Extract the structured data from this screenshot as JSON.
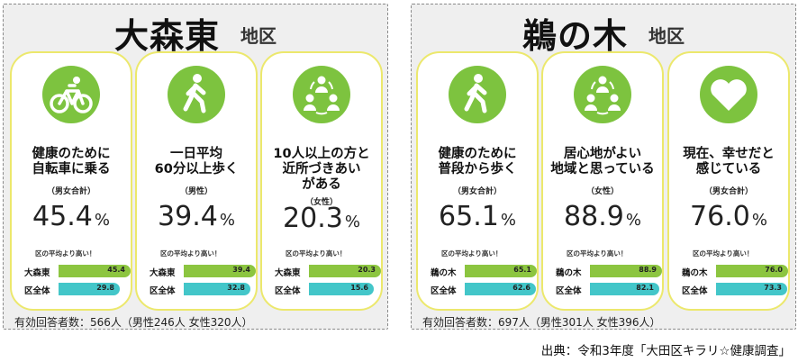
{
  "districts": [
    {
      "name": "大森東",
      "suffix": "地区",
      "footer": "有効回答者数：566人（男性246人 女性320人）",
      "cards": [
        {
          "icon": "bicycle-icon",
          "label": "健康のために\n自転車に乗る",
          "group": "（男女合計）",
          "value": "45.4",
          "unit": "%",
          "note": "区の平均より高い！",
          "rows": [
            {
              "label": "大森東",
              "value": 45.4,
              "text": "45.4"
            },
            {
              "label": "区全体",
              "value": 29.8,
              "text": "29.8"
            }
          ]
        },
        {
          "icon": "walking-person-icon",
          "label": "一日平均\n60分以上歩く",
          "group": "（男性）",
          "value": "39.4",
          "unit": "%",
          "note": "区の平均より高い！",
          "rows": [
            {
              "label": "大森東",
              "value": 39.4,
              "text": "39.4"
            },
            {
              "label": "区全体",
              "value": 32.8,
              "text": "32.8"
            }
          ]
        },
        {
          "icon": "community-people-icon",
          "label": "10人以上の方と\n近所づきあい\nがある",
          "group": "（女性）",
          "value": "20.3",
          "unit": "%",
          "note": "区の平均より高い！",
          "rows": [
            {
              "label": "大森東",
              "value": 20.3,
              "text": "20.3"
            },
            {
              "label": "区全体",
              "value": 15.6,
              "text": "15.6"
            }
          ]
        }
      ]
    },
    {
      "name": "鵜の木",
      "suffix": "地区",
      "footer": "有効回答者数：697人（男性301人 女性396人）",
      "cards": [
        {
          "icon": "walking-person-icon",
          "label": "健康のために\n普段から歩く",
          "group": "（男女合計）",
          "value": "65.1",
          "unit": "%",
          "note": "区の平均より高い！",
          "rows": [
            {
              "label": "鵜の木",
              "value": 65.1,
              "text": "65.1"
            },
            {
              "label": "区全体",
              "value": 62.6,
              "text": "62.6"
            }
          ]
        },
        {
          "icon": "community-people-icon",
          "label": "居心地がよい\n地域と思っている",
          "group": "（女性）",
          "value": "88.9",
          "unit": "%",
          "note": "区の平均より高い！",
          "rows": [
            {
              "label": "鵜の木",
              "value": 88.9,
              "text": "88.9"
            },
            {
              "label": "区全体",
              "value": 82.1,
              "text": "82.1"
            }
          ]
        },
        {
          "icon": "heart-icon",
          "label": "現在、幸せだと\n感じている",
          "group": "（男女合計）",
          "value": "76.0",
          "unit": "%",
          "note": "区の平均より高い！",
          "rows": [
            {
              "label": "鵜の木",
              "value": 76.0,
              "text": "76.0"
            },
            {
              "label": "区全体",
              "value": 73.3,
              "text": "73.3"
            }
          ]
        }
      ]
    }
  ],
  "source": "出典：令和3年度「大田区キラリ☆健康調査」",
  "colors": {
    "icon": "#7dc33f",
    "district_bar": "#8cc540",
    "city_bar": "#43c6c9",
    "card_border": "#ece86c"
  }
}
